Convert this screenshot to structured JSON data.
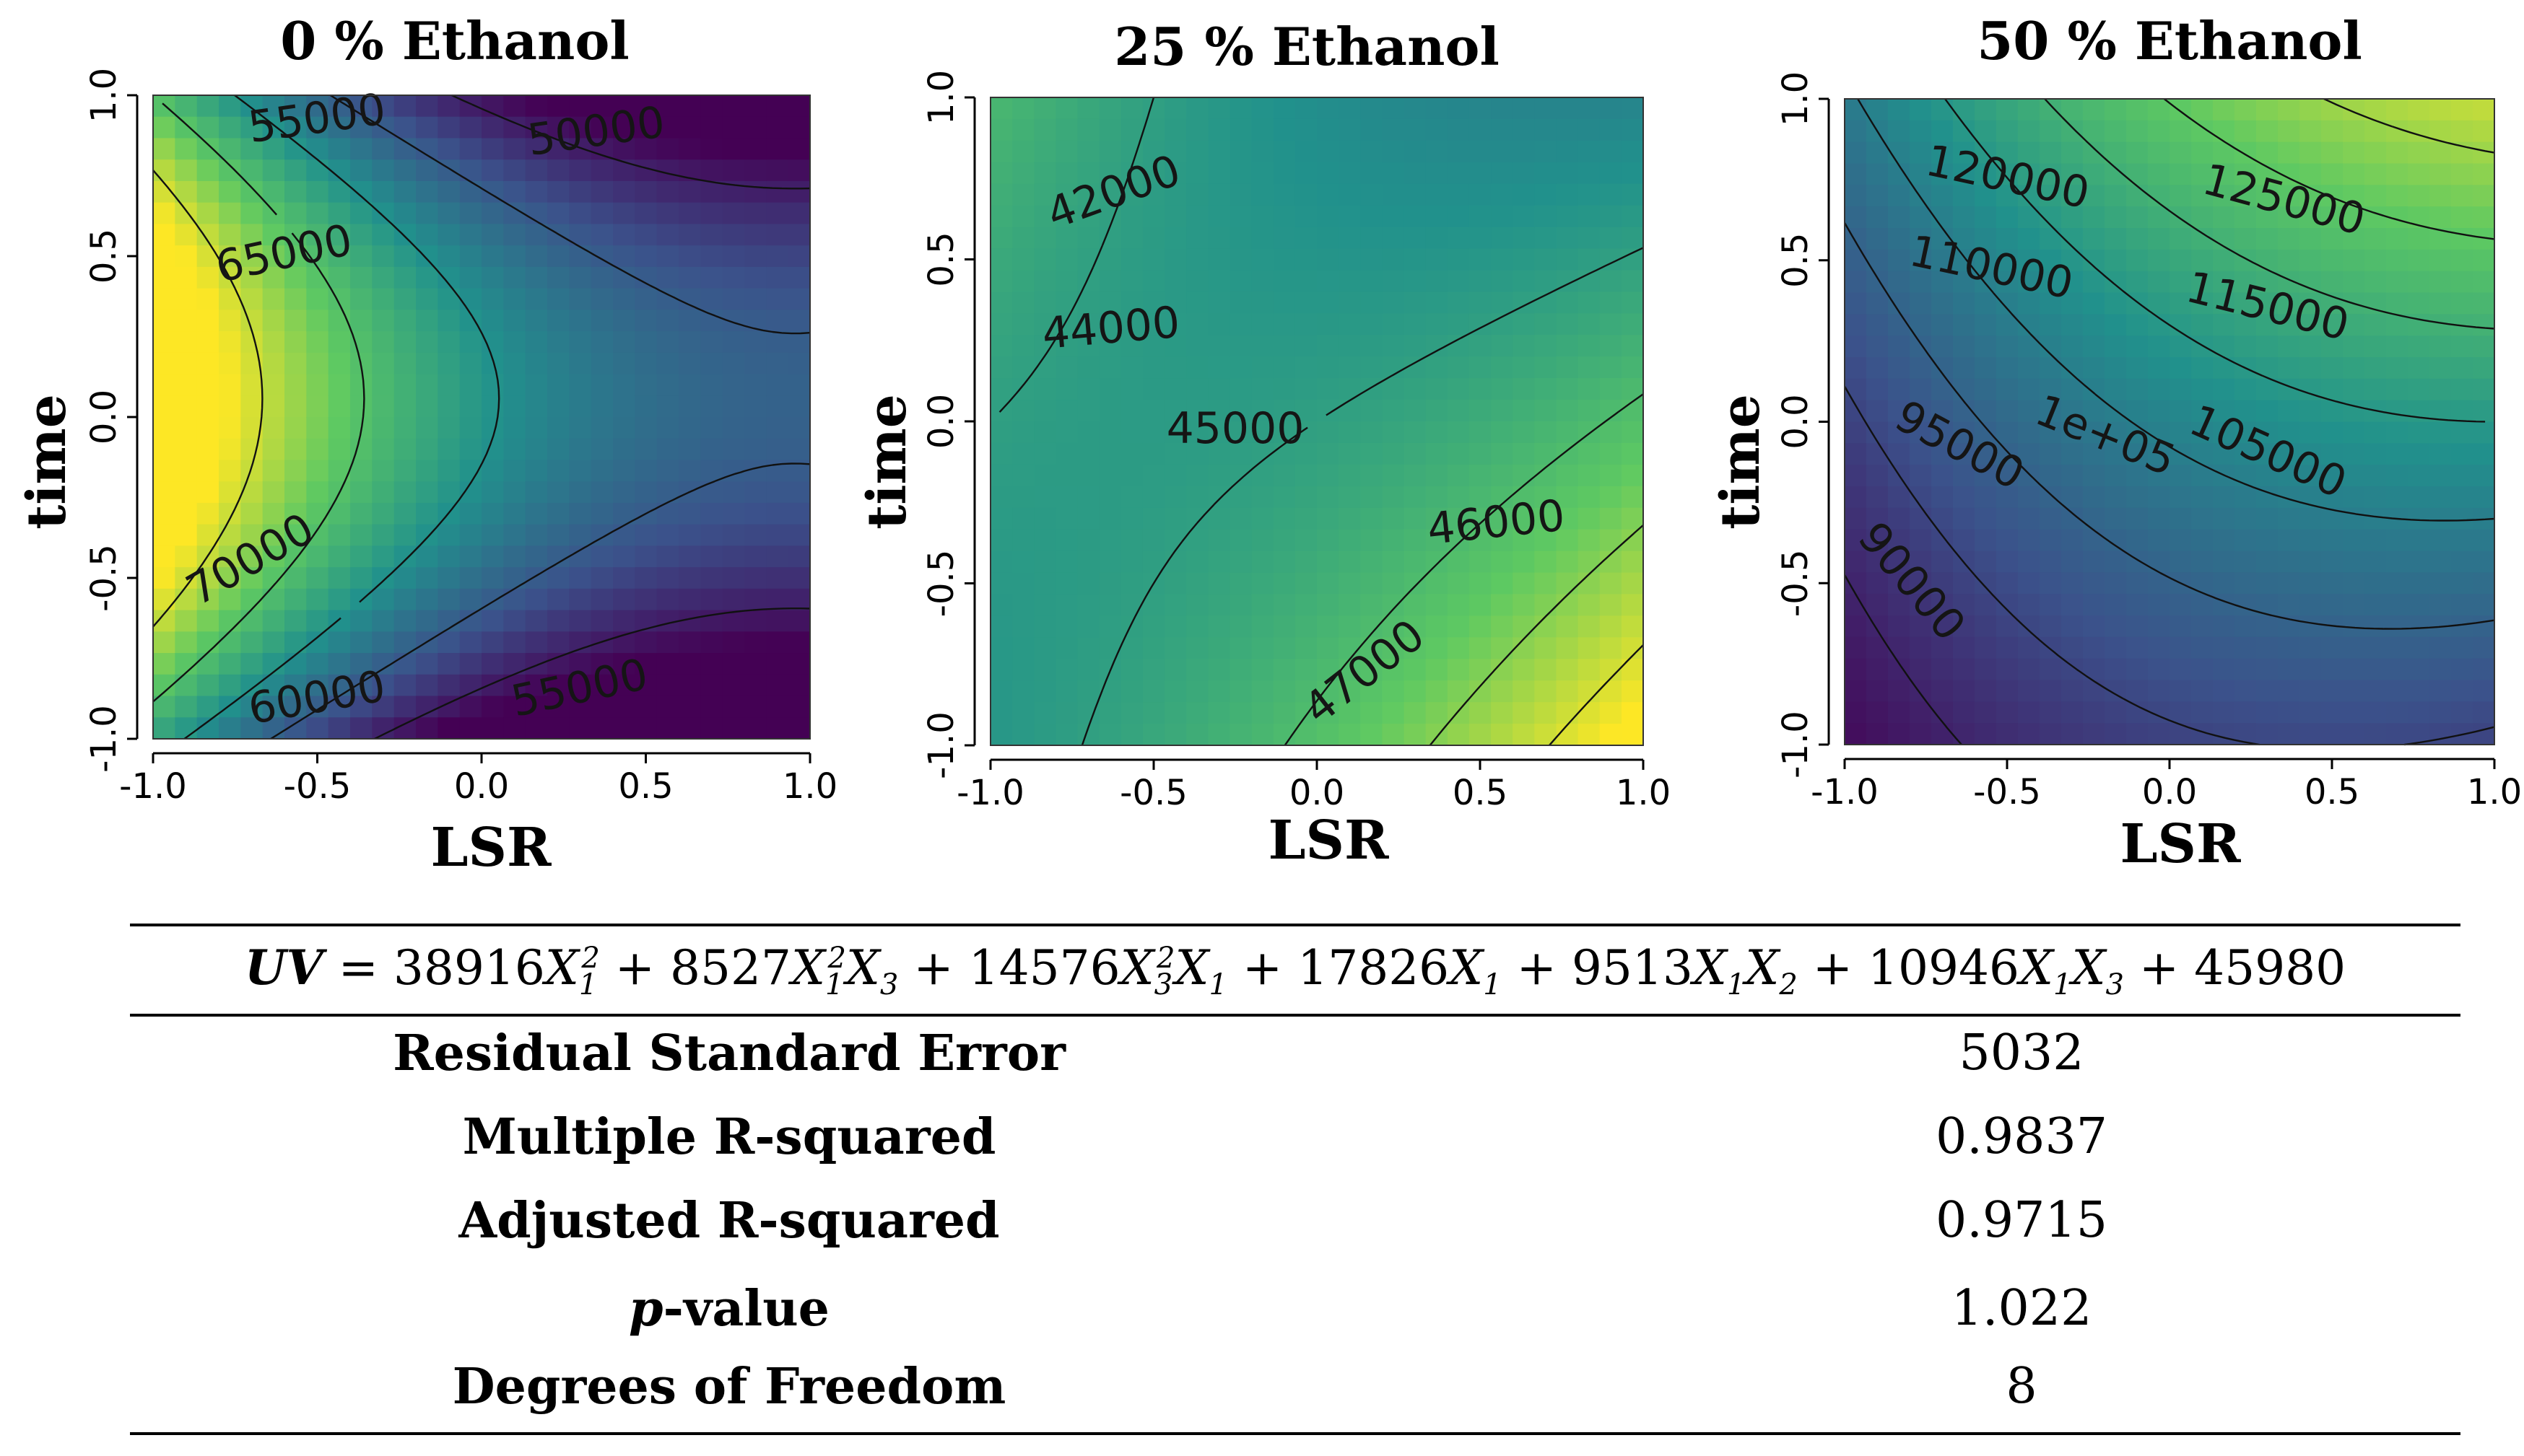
{
  "chart_data": [
    {
      "type": "heatmap",
      "title": "0 % Ethanol",
      "xlabel": "LSR",
      "ylabel": "time",
      "xlim": [
        -1.0,
        1.0
      ],
      "ylim": [
        -1.0,
        1.0
      ],
      "x_ticks": [
        "-1.0",
        "-0.5",
        "0.0",
        "0.5",
        "1.0"
      ],
      "y_ticks": [
        "-1.0",
        "-0.5",
        "0.0",
        "0.5",
        "1.0"
      ],
      "z_range": [
        48000,
        72000
      ],
      "contour_labels": [
        "55000",
        "50000",
        "65000",
        "70000",
        "60000",
        "55000"
      ]
    },
    {
      "type": "heatmap",
      "title": "25 % Ethanol",
      "xlabel": "LSR",
      "ylabel": "time",
      "xlim": [
        -1.0,
        1.0
      ],
      "ylim": [
        -1.0,
        1.0
      ],
      "x_ticks": [
        "-1.0",
        "-0.5",
        "0.0",
        "0.5",
        "1.0"
      ],
      "y_ticks": [
        "-1.0",
        "-0.5",
        "0.0",
        "0.5",
        "1.0"
      ],
      "z_range": [
        40500,
        48500
      ],
      "contour_labels": [
        "42000",
        "44000",
        "45000",
        "46000",
        "47000"
      ]
    },
    {
      "type": "heatmap",
      "title": "50 % Ethanol",
      "xlabel": "LSR",
      "ylabel": "time",
      "xlim": [
        -1.0,
        1.0
      ],
      "ylim": [
        -1.0,
        1.0
      ],
      "x_ticks": [
        "-1.0",
        "-0.5",
        "0.0",
        "0.5",
        "1.0"
      ],
      "y_ticks": [
        "-1.0",
        "-0.5",
        "0.0",
        "0.5",
        "1.0"
      ],
      "z_range": [
        85000,
        132000
      ],
      "contour_labels": [
        "120000",
        "125000",
        "110000",
        "115000",
        "1e+05",
        "105000",
        "95000",
        "90000"
      ]
    }
  ],
  "colormap": [
    "#440154",
    "#3b528b",
    "#21918c",
    "#5ec962",
    "#fde725"
  ],
  "model": {
    "lhs": "UV",
    "terms": [
      {
        "coef": "38916",
        "var": "X",
        "sub1": "1",
        "sup1": "2",
        "var2": "",
        "sub2": ""
      },
      {
        "coef": "8527",
        "var": "X",
        "sub1": "1",
        "sup1": "2",
        "var2": "X",
        "sub2": "3"
      },
      {
        "coef": "14576",
        "var": "X",
        "sub1": "3",
        "sup1": "2",
        "var2": "X",
        "sub2": "1"
      },
      {
        "coef": "17826",
        "var": "X",
        "sub1": "1",
        "sup1": "",
        "var2": "",
        "sub2": ""
      },
      {
        "coef": "9513",
        "var": "X",
        "sub1": "1",
        "sup1": "",
        "var2": "X",
        "sub2": "2"
      },
      {
        "coef": "10946",
        "var": "X",
        "sub1": "1",
        "sup1": "",
        "var2": "X",
        "sub2": "3"
      }
    ],
    "intercept": "45980"
  },
  "stats": [
    {
      "label": "Residual Standard Error",
      "value": "5032"
    },
    {
      "label": "Multiple R-squared",
      "value": "0.9837"
    },
    {
      "label": "Adjusted R-squared",
      "value": "0.9715"
    },
    {
      "label_prefix": "p",
      "label": "-value",
      "value": "1.022"
    },
    {
      "label": "Degrees of Freedom",
      "value": "8"
    }
  ]
}
